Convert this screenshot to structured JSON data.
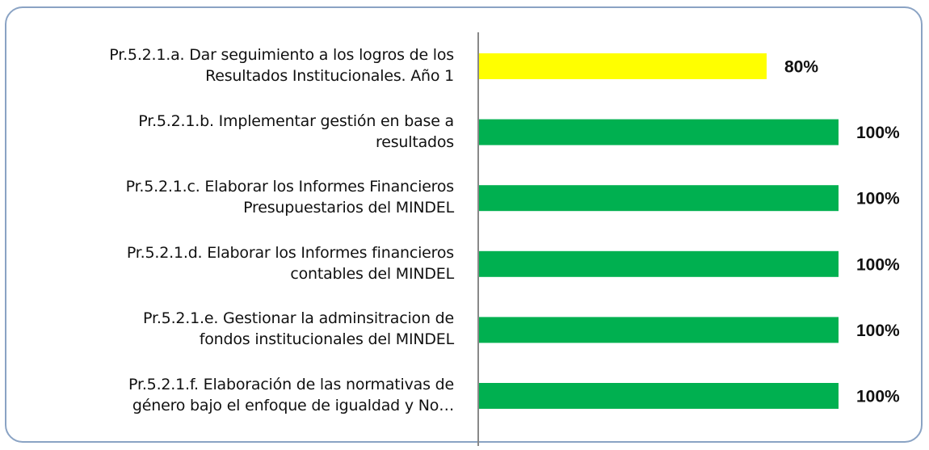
{
  "chart_data": {
    "type": "bar",
    "orientation": "horizontal",
    "categories": [
      "Pr.5.2.1.a. Dar seguimiento a los logros de los\nResultados Institucionales. Año 1",
      "Pr.5.2.1.b. Implementar gestión en base a\nresultados",
      "Pr.5.2.1.c. Elaborar los Informes Financieros\nPresupuestarios del MINDEL",
      "Pr.5.2.1.d. Elaborar los Informes financieros\ncontables del MINDEL",
      "Pr.5.2.1.e. Gestionar la adminsitracion de\nfondos institucionales del MINDEL",
      "Pr.5.2.1.f. Elaboración de las normativas de\ngénero bajo el enfoque de igualdad y No…"
    ],
    "values": [
      80,
      100,
      100,
      100,
      100,
      100
    ],
    "value_labels": [
      "80%",
      "100%",
      "100%",
      "100%",
      "100%",
      "100%"
    ],
    "colors": [
      "#ffff00",
      "#00b050",
      "#00b050",
      "#00b050",
      "#00b050",
      "#00b050"
    ],
    "xlim": [
      0,
      100
    ]
  }
}
